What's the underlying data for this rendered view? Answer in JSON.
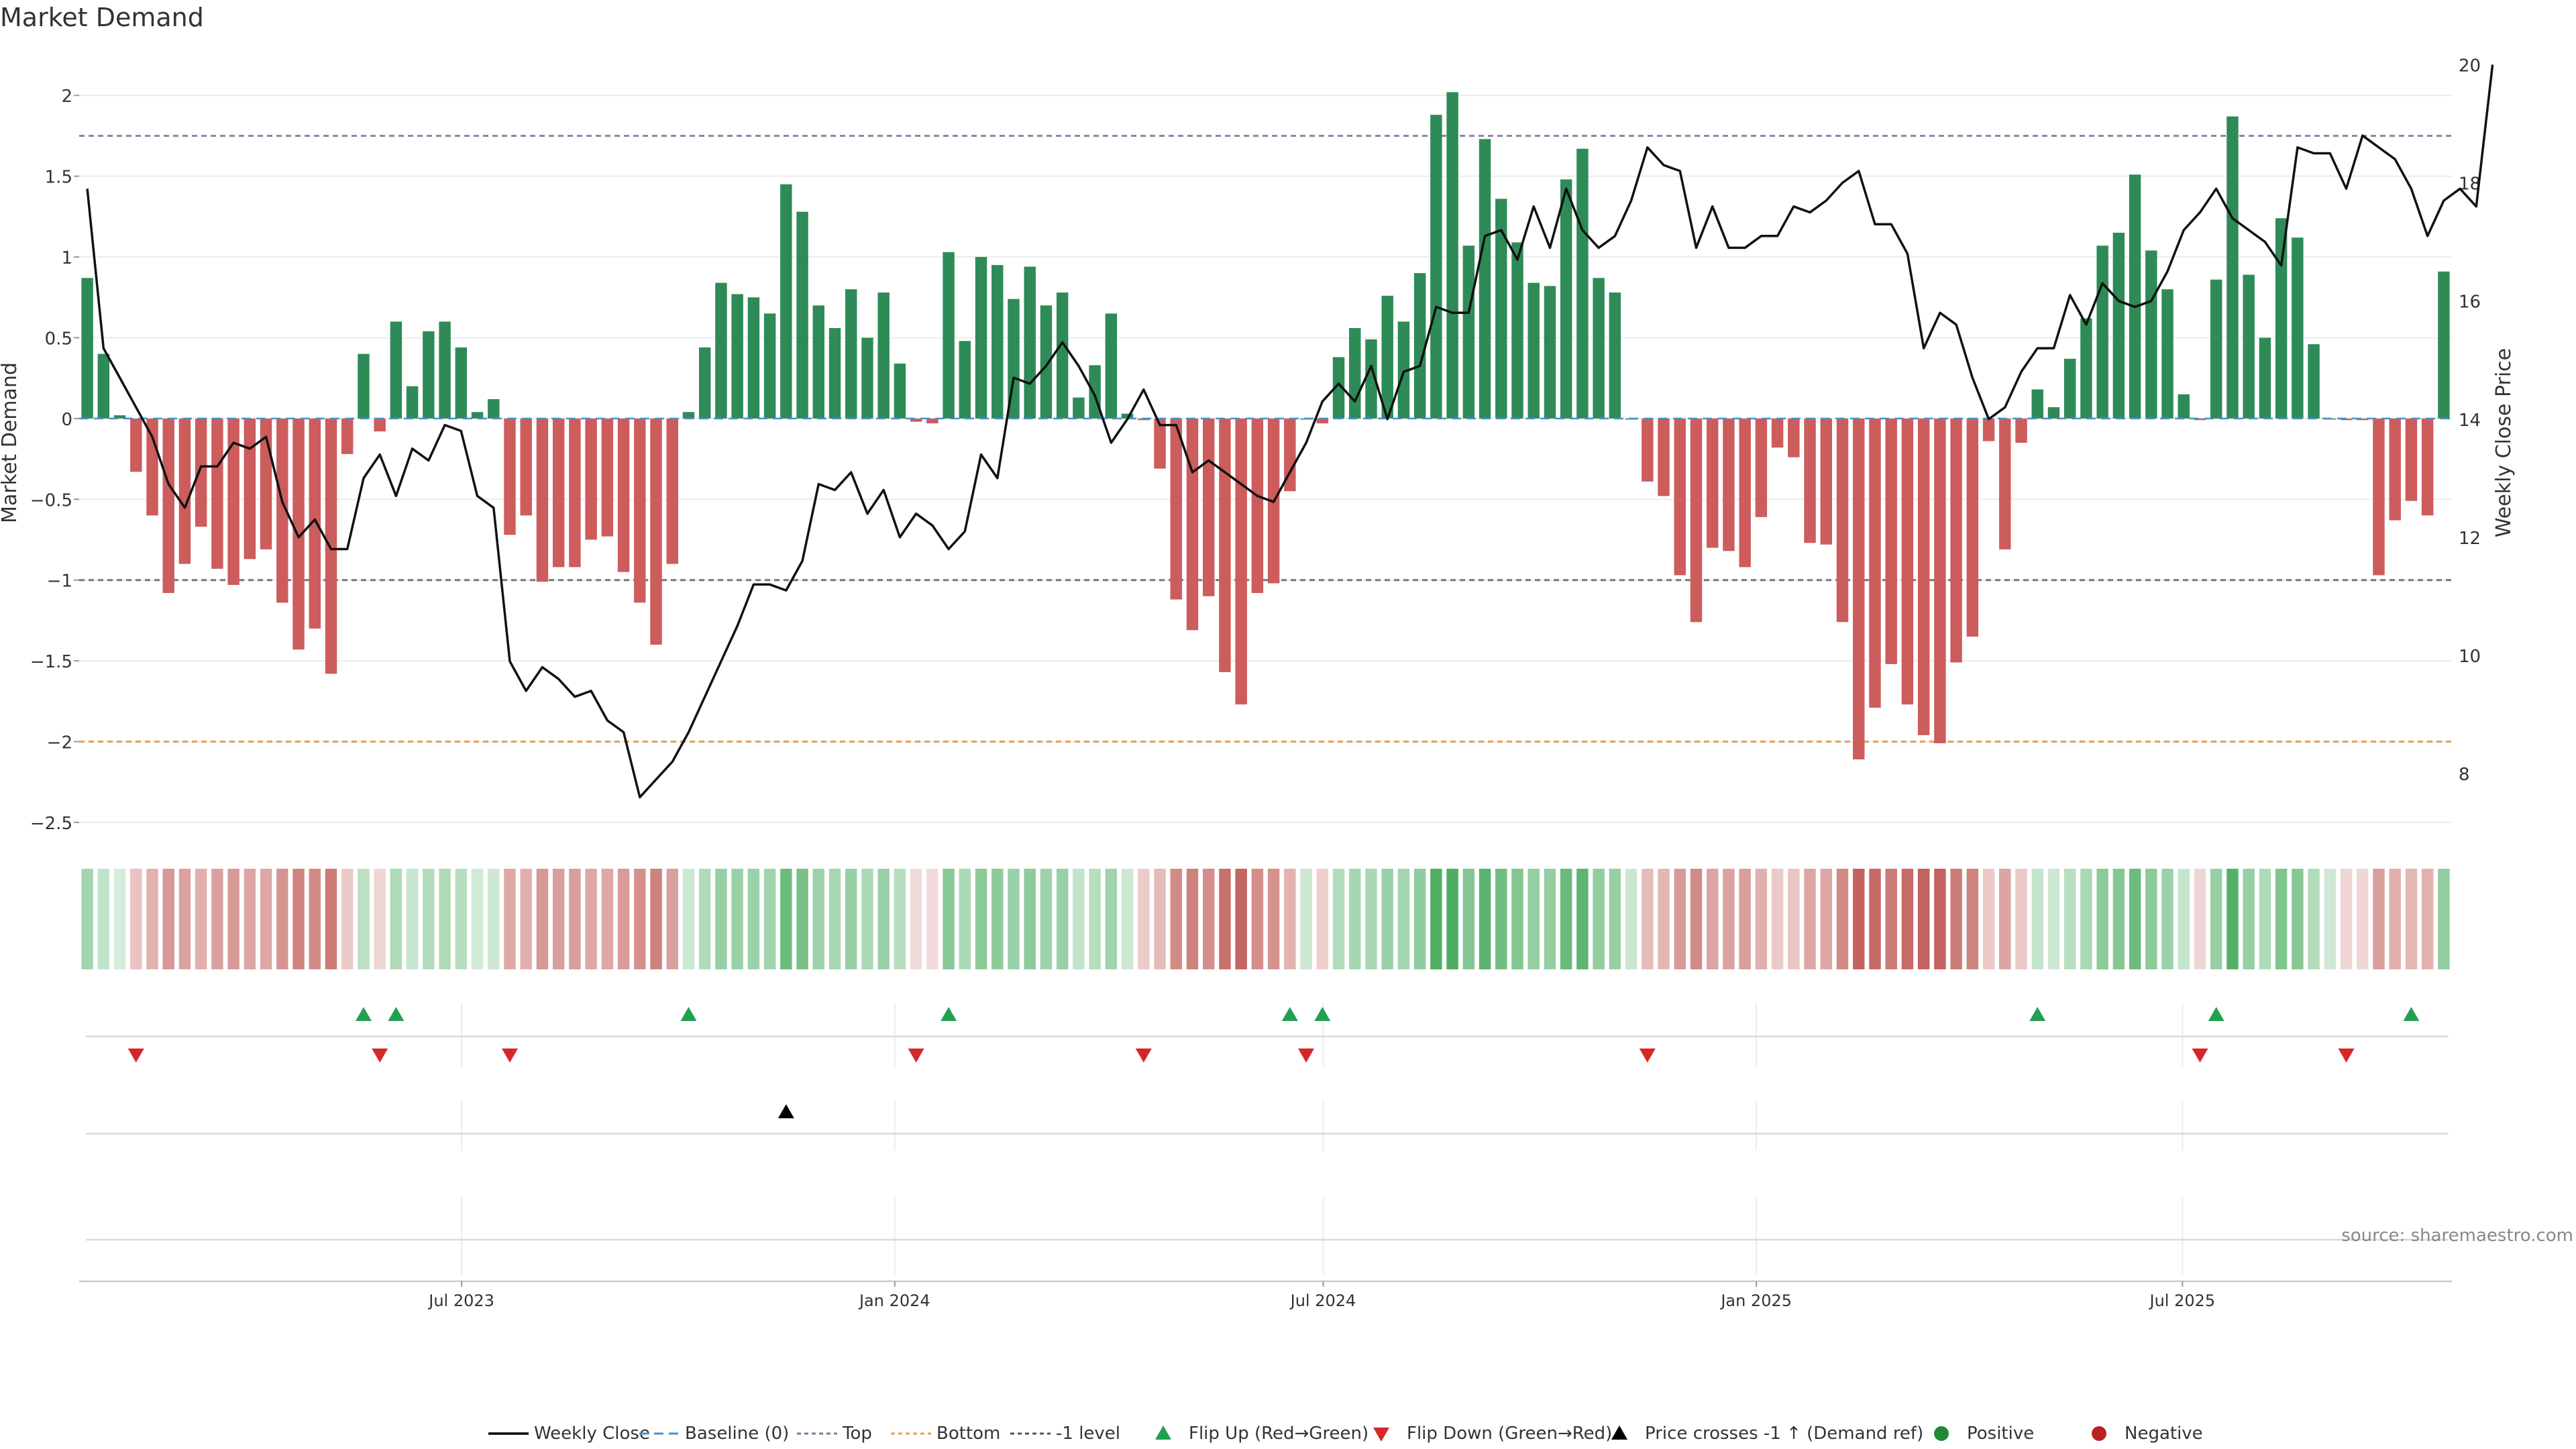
{
  "chart_data": {
    "type": "bar",
    "title": "Market Demand",
    "ylabel_left": "Market Demand",
    "ylabel_right": "Weekly Close Price",
    "ylim_left": [
      -2.6,
      2.3
    ],
    "ylim_right": [
      6.9,
      20.3
    ],
    "yticks_left": [
      2,
      1.5,
      1,
      0.5,
      0,
      -0.5,
      -1,
      -1.5,
      -2,
      -2.5
    ],
    "yticks_left_labels": [
      "2",
      "1.5",
      "1",
      "0.5",
      "0",
      "−0.5",
      "−1",
      "−1.5",
      "−2",
      "−2.5"
    ],
    "yticks_right": [
      20,
      18,
      16,
      14,
      12,
      10,
      8
    ],
    "yticks_right_labels": [
      "20",
      "18",
      "16",
      "14",
      "12",
      "10",
      "8"
    ],
    "date_range": [
      "2023-01-23",
      "2025-10-20"
    ],
    "x_ticks": [
      {
        "date": "2023-07-01",
        "label": "Jul 2023"
      },
      {
        "date": "2024-01-01",
        "label": "Jan 2024"
      },
      {
        "date": "2024-07-01",
        "label": "Jul 2024"
      },
      {
        "date": "2025-01-01",
        "label": "Jan 2025"
      },
      {
        "date": "2025-07-01",
        "label": "Jul 2025"
      }
    ],
    "reference_lines": [
      {
        "name": "Top",
        "value": 1.75,
        "color": "#8888aa"
      },
      {
        "name": "-1 level",
        "value": -1,
        "color": "#777777"
      },
      {
        "name": "Bottom",
        "value": -2,
        "color": "#e8a050"
      }
    ],
    "demand": [
      0.87,
      0.4,
      0.02,
      -0.33,
      -0.6,
      -1.08,
      -0.9,
      -0.67,
      -0.93,
      -1.03,
      -0.87,
      -0.81,
      -1.14,
      -1.43,
      -1.3,
      -1.58,
      -0.22,
      0.4,
      -0.08,
      0.6,
      0.2,
      0.54,
      0.6,
      0.44,
      0.04,
      0.12,
      -0.72,
      -0.6,
      -1.01,
      -0.92,
      -0.92,
      -0.75,
      -0.73,
      -0.95,
      -1.14,
      -1.4,
      -0.9,
      0.04,
      0.44,
      0.84,
      0.77,
      0.75,
      0.65,
      1.45,
      1.28,
      0.7,
      0.56,
      0.8,
      0.5,
      0.78,
      0.34,
      -0.02,
      -0.03,
      1.03,
      0.48,
      1.0,
      0.95,
      0.74,
      0.94,
      0.7,
      0.78,
      0.13,
      0.33,
      0.65,
      0.03,
      -0.01,
      -0.31,
      -1.12,
      -1.31,
      -1.1,
      -1.57,
      -1.77,
      -1.08,
      -1.02,
      -0.45,
      0.0,
      -0.03,
      0.38,
      0.56,
      0.49,
      0.76,
      0.6,
      0.9,
      1.88,
      2.02,
      1.07,
      1.73,
      1.36,
      1.09,
      0.84,
      0.82,
      1.48,
      1.67,
      0.87,
      0.78,
      0.0,
      -0.39,
      -0.48,
      -0.97,
      -1.26,
      -0.8,
      -0.82,
      -0.92,
      -0.61,
      -0.18,
      -0.24,
      -0.77,
      -0.78,
      -1.26,
      -2.11,
      -1.79,
      -1.52,
      -1.77,
      -1.96,
      -2.01,
      -1.51,
      -1.35,
      -0.14,
      -0.81,
      -0.15,
      0.18,
      0.07,
      0.37,
      0.62,
      1.07,
      1.15,
      1.51,
      1.04,
      0.8,
      0.15,
      -0.01,
      0.86,
      1.87,
      0.89,
      0.5,
      1.24,
      1.12,
      0.46,
      0.0,
      -0.01,
      -0.01,
      -0.97,
      -0.63,
      -0.51,
      -0.6,
      0.91
    ],
    "price": [
      17.9,
      15.2,
      14.7,
      14.2,
      13.7,
      12.9,
      12.5,
      13.2,
      13.2,
      13.6,
      13.5,
      13.7,
      12.6,
      12.0,
      12.3,
      11.8,
      11.8,
      13.0,
      13.4,
      12.7,
      13.5,
      13.3,
      13.9,
      13.8,
      12.7,
      12.5,
      9.9,
      9.4,
      9.8,
      9.6,
      9.3,
      9.4,
      8.9,
      8.7,
      7.6,
      7.9,
      8.2,
      8.7,
      9.3,
      9.9,
      10.5,
      11.2,
      11.2,
      11.1,
      11.6,
      12.9,
      12.8,
      13.1,
      12.4,
      12.8,
      12.0,
      12.4,
      12.2,
      11.8,
      12.1,
      13.4,
      13.0,
      14.7,
      14.6,
      14.9,
      15.3,
      14.9,
      14.4,
      13.6,
      14.0,
      14.5,
      13.9,
      13.9,
      13.1,
      13.3,
      13.1,
      12.9,
      12.7,
      12.6,
      13.1,
      13.6,
      14.3,
      14.6,
      14.3,
      14.9,
      14.0,
      14.8,
      14.9,
      15.9,
      15.8,
      15.8,
      17.1,
      17.2,
      16.7,
      17.6,
      16.9,
      17.9,
      17.2,
      16.9,
      17.1,
      17.7,
      18.6,
      18.3,
      18.2,
      16.9,
      17.6,
      16.9,
      16.9,
      17.1,
      17.1,
      17.6,
      17.5,
      17.7,
      18.0,
      18.2,
      17.3,
      17.3,
      16.8,
      15.2,
      15.8,
      15.6,
      14.7,
      14.0,
      14.2,
      14.8,
      15.2,
      15.2,
      16.1,
      15.6,
      16.3,
      16.0,
      15.9,
      16.0,
      16.5,
      17.2,
      17.5,
      17.9,
      17.4,
      17.2,
      17.0,
      16.6,
      18.6,
      18.5,
      18.5,
      17.9,
      18.8,
      18.6,
      18.4,
      17.9,
      17.1,
      17.7,
      17.9,
      17.6,
      20.0
    ],
    "strip_intensity": [
      {
        "from": 0,
        "to": 3,
        "level": 0.42
      },
      {
        "from": 3,
        "to": 17,
        "level": 0.55
      },
      {
        "from": 17,
        "to": 26,
        "level": 0.5
      },
      {
        "from": 26,
        "to": 37,
        "level": 0.6
      },
      {
        "from": 37,
        "to": 51,
        "level": 0.6
      },
      {
        "from": 51,
        "to": 53,
        "level": 0.25
      },
      {
        "from": 53,
        "to": 65,
        "level": 0.6
      },
      {
        "from": 65,
        "to": 75,
        "level": 0.68
      },
      {
        "from": 75,
        "to": 96,
        "level": 0.62
      },
      {
        "from": 96,
        "to": 120,
        "level": 0.6
      },
      {
        "from": 120,
        "to": 142,
        "level": 0.55
      },
      {
        "from": 142,
        "to": 148,
        "level": 0.58
      }
    ],
    "flip_up": [
      17,
      19,
      37,
      53,
      74,
      76,
      120,
      131,
      143
    ],
    "flip_down": [
      3,
      18,
      26,
      51,
      65,
      75,
      96,
      130,
      139
    ],
    "price_cross": [
      43
    ],
    "source_note": "source: sharemaestro.com",
    "legend": [
      {
        "label": "Weekly Close",
        "type": "line",
        "color": "#000000"
      },
      {
        "label": "Baseline (0)",
        "type": "dash",
        "color": "#4a8fc7"
      },
      {
        "label": "Top",
        "type": "dot",
        "color": "#7a7aa0"
      },
      {
        "label": "Bottom",
        "type": "dot",
        "color": "#e8a050"
      },
      {
        "label": "-1 level",
        "type": "dot",
        "color": "#555555"
      },
      {
        "label": "Flip Up (Red→Green)",
        "type": "tri-up",
        "color": "#22a050"
      },
      {
        "label": "Flip Down (Green→Red)",
        "type": "tri-down",
        "color": "#d62728"
      },
      {
        "label": "Price crosses -1 ↑ (Demand ref)",
        "type": "tri-up",
        "color": "#000000"
      },
      {
        "label": "Positive",
        "type": "dot-marker",
        "color": "#228833"
      },
      {
        "label": "Negative",
        "type": "dot-marker",
        "color": "#bb2222"
      }
    ],
    "colors": {
      "positive": "#2e8b57",
      "negative": "#cd5c5c",
      "price": "#111111",
      "strip_pos": "#43a95a",
      "strip_neg": "#c05a55"
    }
  }
}
